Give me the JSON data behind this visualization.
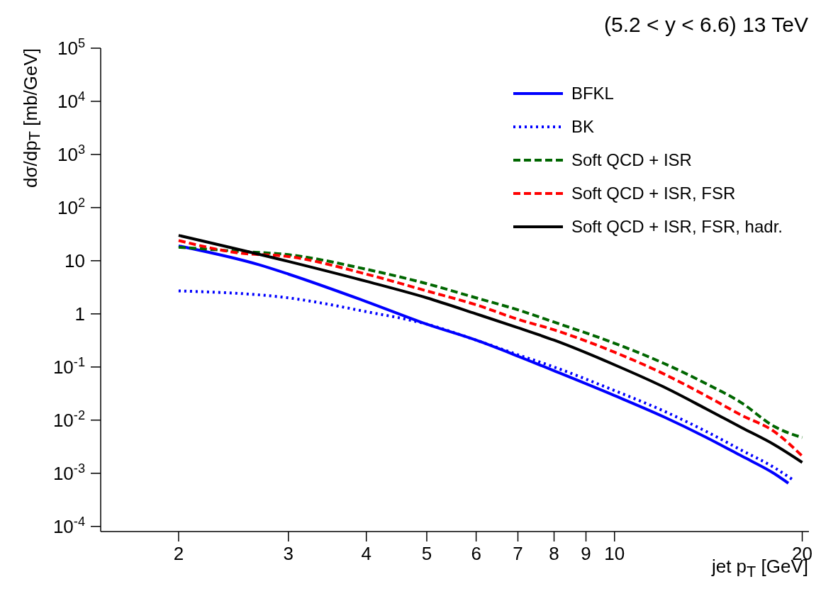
{
  "chart_data": {
    "type": "line",
    "title": "(5.2 < y < 6.6)  13 TeV",
    "xlabel": "jet p$_{T}$ [GeV]",
    "ylabel": "dσ/dp$_{T}$ [mb/GeV]",
    "log": "xy",
    "grid": false,
    "legend": "top right",
    "marker": "none",
    "xlim": [
      1.5,
      20.5
    ],
    "xticks": [
      2,
      3,
      4,
      5,
      6,
      7,
      8,
      9,
      10,
      20
    ],
    "ylim": [
      8e-05,
      100000
    ],
    "yticks": [
      {
        "value": 0.0001,
        "label": "10$^{-4}$"
      },
      {
        "value": 0.001,
        "label": "10$^{-3}$"
      },
      {
        "value": 0.01,
        "label": "10$^{-2}$"
      },
      {
        "value": 0.1,
        "label": "10$^{-1}$"
      },
      1,
      10,
      {
        "value": 100,
        "label": "10$^{2}$"
      },
      {
        "value": 1000,
        "label": "10$^{3}$"
      },
      {
        "value": 10000,
        "label": "10$^{4}$"
      },
      {
        "value": 100000,
        "label": "10$^{5}$"
      }
    ],
    "series": [
      {
        "name": "BFKL",
        "color": "#0000ff",
        "line_style": "solid",
        "x": [
          2,
          2.7,
          3,
          4,
          5,
          6,
          7,
          8,
          10,
          12,
          14,
          16,
          18,
          19
        ],
        "values": [
          19,
          8.3,
          5.6,
          1.7,
          0.64,
          0.32,
          0.16,
          0.085,
          0.029,
          0.0115,
          0.0048,
          0.0021,
          0.001,
          0.00065
        ]
      },
      {
        "name": "BK",
        "color": "#0000ff",
        "line_style": "dotted",
        "x": [
          2,
          3,
          4,
          5,
          6,
          7,
          8,
          10,
          12,
          14,
          16,
          18,
          19.3
        ],
        "values": [
          2.7,
          2,
          1.1,
          0.64,
          0.32,
          0.17,
          0.1,
          0.036,
          0.0148,
          0.0062,
          0.0027,
          0.0013,
          0.00076
        ]
      },
      {
        "name": "Soft QCD + ISR",
        "color": "#006600",
        "line_style": "dashed",
        "x": [
          2,
          2.5,
          3,
          4,
          5,
          6,
          7,
          8,
          10,
          12,
          14,
          16,
          18,
          20
        ],
        "values": [
          18,
          15,
          13,
          6.9,
          3.7,
          2,
          1.19,
          0.7,
          0.28,
          0.117,
          0.049,
          0.021,
          0.0077,
          0.0047
        ]
      },
      {
        "name": "Soft QCD + ISR, FSR",
        "color": "#ff0000",
        "line_style": "dashed",
        "x": [
          2,
          2.5,
          3,
          4,
          5,
          6,
          7,
          8,
          10,
          12,
          14,
          16,
          18,
          20
        ],
        "values": [
          24,
          14,
          12,
          5.6,
          2.7,
          1.48,
          0.79,
          0.5,
          0.19,
          0.074,
          0.029,
          0.0123,
          0.0062,
          0.0021
        ]
      },
      {
        "name": "Soft QCD + ISR, FSR, hadr.",
        "color": "#000000",
        "line_style": "solid",
        "x": [
          2,
          3,
          4,
          5,
          6,
          7,
          8,
          10,
          12,
          14,
          16,
          18,
          20
        ],
        "values": [
          30,
          9.7,
          4.1,
          2,
          1,
          0.55,
          0.32,
          0.11,
          0.042,
          0.0165,
          0.0072,
          0.0035,
          0.0016
        ]
      }
    ]
  }
}
